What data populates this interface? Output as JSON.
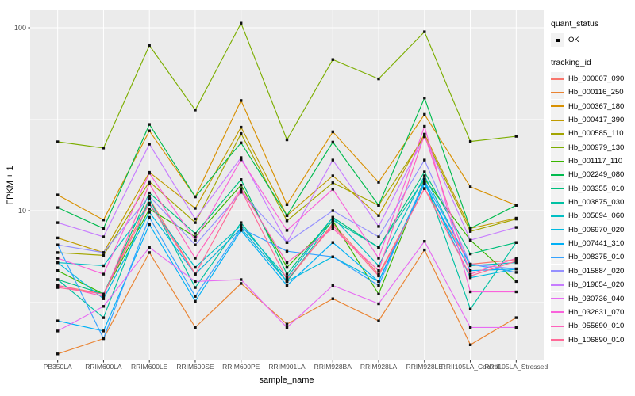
{
  "figure": {
    "background": "#FFFFFF",
    "panel_background": "#EBEBEB",
    "grid_color": "#FFFFFF",
    "tick_text_color": "#4D4D4D",
    "point_color": "#111111"
  },
  "legend": {
    "quant_status_title": "quant_status",
    "quant_status_items": [
      {
        "label": "OK",
        "icon": "point-icon"
      }
    ],
    "tracking_id_title": "tracking_id"
  },
  "chart_data": {
    "type": "line",
    "title": "",
    "xlabel": "sample_name",
    "ylabel": "FPKM + 1",
    "y_scale": "log10",
    "ylim": [
      1.5,
      125
    ],
    "grid": true,
    "legend_position": "right",
    "yticks": [
      {
        "label": "100",
        "value": 100
      },
      {
        "label": "10",
        "value": 10
      }
    ],
    "minor_grid_values": [
      3.162,
      31.62
    ],
    "categories": [
      "PB350LA",
      "RRIM600LA",
      "RRIM600LE",
      "RRIM600SE",
      "RRIM600PE",
      "RRIM901LA",
      "RRIM928BA",
      "RRIM928LA",
      "RRIM928LE",
      "RRII105LA_Control",
      "RRII105LA_Stressed"
    ],
    "quant_status": "OK",
    "series": [
      {
        "name": "Hb_000007_090",
        "color": "#F8766D",
        "values": [
          3.9,
          3.5,
          11.6,
          4.5,
          8.0,
          4.1,
          8.5,
          4.5,
          13.2,
          5.1,
          5.4
        ]
      },
      {
        "name": "Hb_000116_250",
        "color": "#EA8331",
        "values": [
          1.65,
          2.0,
          5.9,
          2.3,
          4.0,
          2.4,
          3.3,
          2.5,
          6.1,
          1.85,
          2.6
        ]
      },
      {
        "name": "Hb_000367_180",
        "color": "#D89000",
        "values": [
          12.2,
          8.9,
          27.3,
          11.9,
          40.0,
          10.8,
          27.0,
          14.3,
          33.6,
          13.5,
          10.7
        ]
      },
      {
        "name": "Hb_000417_390",
        "color": "#C09B00",
        "values": [
          7.1,
          5.9,
          16.2,
          10.3,
          28.6,
          9.4,
          15.5,
          9.4,
          26.2,
          8.0,
          9.1
        ]
      },
      {
        "name": "Hb_000585_110",
        "color": "#A3A500",
        "values": [
          5.9,
          5.7,
          14.4,
          8.6,
          26.4,
          8.8,
          14.2,
          10.7,
          25.4,
          7.7,
          9.0
        ]
      },
      {
        "name": "Hb_000979_130",
        "color": "#7CAE00",
        "values": [
          23.8,
          22.0,
          80.0,
          35.5,
          106.0,
          24.4,
          67.0,
          52.5,
          95.0,
          23.9,
          25.5
        ]
      },
      {
        "name": "Hb_001117_110",
        "color": "#39B600",
        "values": [
          4.7,
          3.5,
          10.2,
          7.2,
          13.8,
          4.9,
          8.8,
          3.5,
          14.9,
          6.9,
          4.1
        ]
      },
      {
        "name": "Hb_002249_080",
        "color": "#00BB4E",
        "values": [
          10.4,
          8.0,
          29.6,
          11.9,
          23.5,
          9.4,
          23.7,
          10.7,
          41.3,
          8.0,
          10.7
        ]
      },
      {
        "name": "Hb_003355_010",
        "color": "#00BF7D",
        "values": [
          4.2,
          3.5,
          12.5,
          7.5,
          14.8,
          4.5,
          9.2,
          6.3,
          16.3,
          5.8,
          6.7
        ]
      },
      {
        "name": "Hb_003875_030",
        "color": "#00C1A3",
        "values": [
          4.2,
          2.6,
          11.6,
          3.8,
          8.6,
          4.1,
          8.9,
          6.3,
          14.9,
          2.9,
          6.7
        ]
      },
      {
        "name": "Hb_005694_060",
        "color": "#00BFC4",
        "values": [
          5.2,
          5.0,
          10.8,
          4.9,
          8.3,
          4.3,
          9.2,
          5.0,
          15.5,
          5.0,
          5.2
        ]
      },
      {
        "name": "Hb_006970_020",
        "color": "#00BAE0",
        "values": [
          5.2,
          3.3,
          9.8,
          4.5,
          8.0,
          4.1,
          5.6,
          4.1,
          14.4,
          4.3,
          4.8
        ]
      },
      {
        "name": "Hb_007441_310",
        "color": "#00B0F6",
        "values": [
          2.5,
          2.2,
          8.4,
          3.2,
          7.8,
          3.9,
          6.7,
          4.1,
          14.0,
          4.7,
          4.8
        ]
      },
      {
        "name": "Hb_008375_010",
        "color": "#35A2FF",
        "values": [
          6.5,
          2.0,
          9.2,
          3.4,
          8.0,
          6.0,
          5.6,
          3.9,
          14.6,
          5.1,
          4.6
        ]
      },
      {
        "name": "Hb_015884_020",
        "color": "#9590FF",
        "values": [
          6.5,
          5.9,
          12.0,
          6.5,
          12.6,
          6.7,
          10.0,
          7.2,
          18.9,
          5.1,
          4.8
        ]
      },
      {
        "name": "Hb_019654_020",
        "color": "#C77CFF",
        "values": [
          8.6,
          7.2,
          23.1,
          9.0,
          19.5,
          6.7,
          18.9,
          8.2,
          25.4,
          6.9,
          8.1
        ]
      },
      {
        "name": "Hb_030736_040",
        "color": "#E76BF3",
        "values": [
          2.2,
          3.0,
          6.3,
          4.1,
          4.2,
          2.3,
          3.9,
          3.1,
          6.8,
          2.3,
          2.3
        ]
      },
      {
        "name": "Hb_032631_070",
        "color": "#FA62DB",
        "values": [
          5.5,
          4.5,
          16.0,
          6.9,
          19.0,
          7.8,
          13.1,
          5.5,
          28.9,
          3.6,
          3.6
        ]
      },
      {
        "name": "Hb_055690_010",
        "color": "#FF62BC",
        "values": [
          3.9,
          3.4,
          14.0,
          5.5,
          13.2,
          5.2,
          8.0,
          4.7,
          26.0,
          4.5,
          5.5
        ]
      },
      {
        "name": "Hb_106890_010",
        "color": "#FF6A98",
        "values": [
          3.8,
          3.5,
          11.0,
          4.5,
          13.0,
          4.2,
          8.3,
          4.4,
          13.2,
          4.4,
          5.3
        ]
      }
    ]
  }
}
